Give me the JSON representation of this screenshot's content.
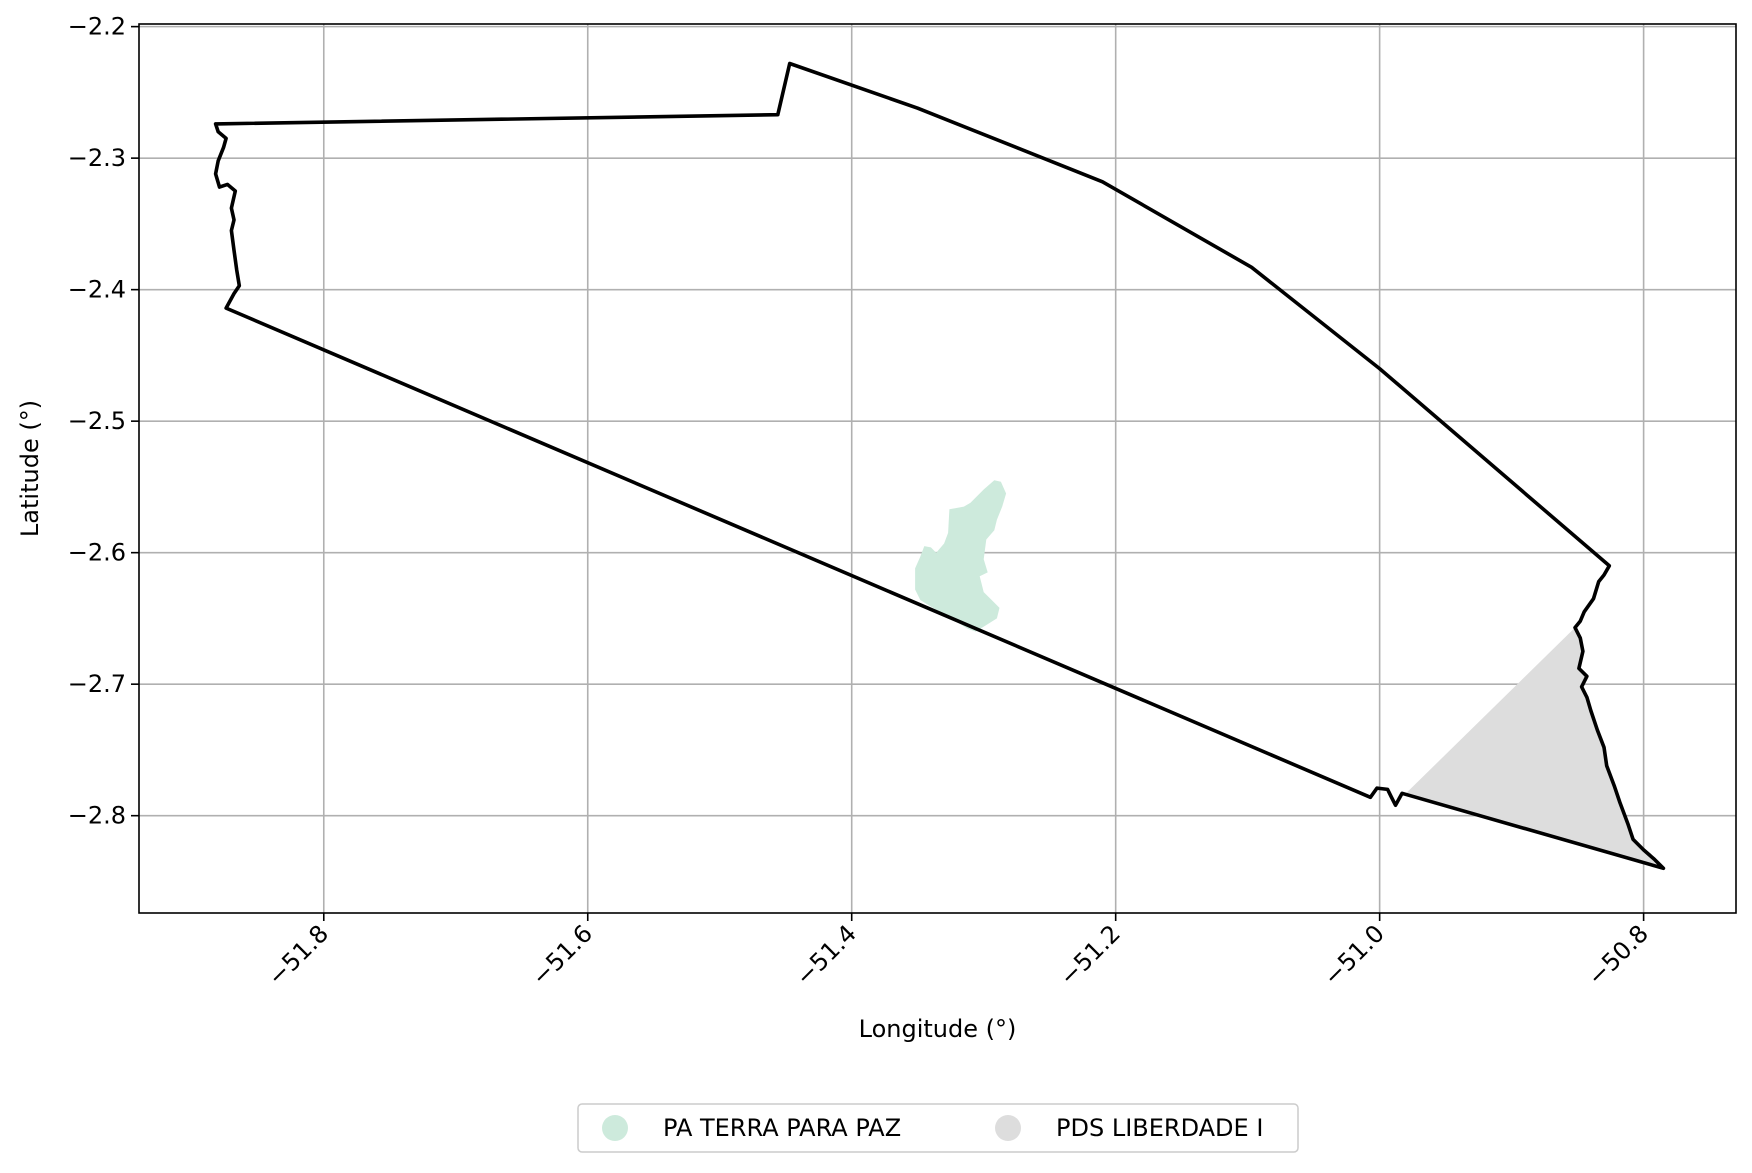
{
  "chart_data": {
    "type": "map",
    "xlabel": "Longitude (°)",
    "ylabel": "Latitude (°)",
    "xlim": [
      -51.94,
      -50.73
    ],
    "ylim": [
      -2.874,
      -2.198
    ],
    "x_ticks": [
      -51.8,
      -51.6,
      -51.4,
      -51.2,
      -51.0,
      -50.8
    ],
    "x_tick_labels": [
      "−51.8",
      "−51.6",
      "−51.4",
      "−51.2",
      "−51.0",
      "−50.8"
    ],
    "y_ticks": [
      -2.2,
      -2.3,
      -2.4,
      -2.5,
      -2.6,
      -2.7,
      -2.8
    ],
    "y_tick_labels": [
      "−2.2",
      "−2.3",
      "−2.4",
      "−2.5",
      "−2.6",
      "−2.7",
      "−2.8"
    ],
    "grid": true,
    "legend_position": "bottom-center",
    "legend": [
      {
        "label": "PA TERRA PARA PAZ",
        "color": "#cdeadc"
      },
      {
        "label": "PDS LIBERDADE I",
        "color": "#dddddd"
      }
    ],
    "boundary": [
      [
        -51.882,
        -2.274
      ],
      [
        -51.456,
        -2.267
      ],
      [
        -51.447,
        -2.228
      ],
      [
        -51.35,
        -2.262
      ],
      [
        -51.21,
        -2.318
      ],
      [
        -51.097,
        -2.383
      ],
      [
        -51.0,
        -2.46
      ],
      [
        -50.826,
        -2.61
      ],
      [
        -50.83,
        -2.617
      ],
      [
        -50.834,
        -2.622
      ],
      [
        -50.838,
        -2.635
      ],
      [
        -50.845,
        -2.645
      ],
      [
        -50.848,
        -2.652
      ],
      [
        -50.852,
        -2.657
      ],
      [
        -50.848,
        -2.665
      ],
      [
        -50.846,
        -2.675
      ],
      [
        -50.849,
        -2.688
      ],
      [
        -50.843,
        -2.694
      ],
      [
        -50.847,
        -2.702
      ],
      [
        -50.843,
        -2.71
      ],
      [
        -50.84,
        -2.72
      ],
      [
        -50.835,
        -2.735
      ],
      [
        -50.83,
        -2.748
      ],
      [
        -50.828,
        -2.762
      ],
      [
        -50.822,
        -2.778
      ],
      [
        -50.818,
        -2.79
      ],
      [
        -50.812,
        -2.806
      ],
      [
        -50.808,
        -2.818
      ],
      [
        -50.8,
        -2.826
      ],
      [
        -50.792,
        -2.833
      ],
      [
        -50.785,
        -2.84
      ],
      [
        -50.983,
        -2.783
      ],
      [
        -50.988,
        -2.792
      ],
      [
        -50.991,
        -2.786
      ],
      [
        -50.994,
        -2.78
      ],
      [
        -51.002,
        -2.779
      ],
      [
        -51.007,
        -2.786
      ],
      [
        -51.874,
        -2.414
      ],
      [
        -51.868,
        -2.403
      ],
      [
        -51.864,
        -2.397
      ],
      [
        -51.866,
        -2.385
      ],
      [
        -51.868,
        -2.37
      ],
      [
        -51.87,
        -2.355
      ],
      [
        -51.868,
        -2.347
      ],
      [
        -51.87,
        -2.338
      ],
      [
        -51.867,
        -2.325
      ],
      [
        -51.873,
        -2.32
      ],
      [
        -51.879,
        -2.322
      ],
      [
        -51.882,
        -2.312
      ],
      [
        -51.88,
        -2.302
      ],
      [
        -51.876,
        -2.292
      ],
      [
        -51.874,
        -2.285
      ],
      [
        -51.88,
        -2.28
      ],
      [
        -51.882,
        -2.274
      ]
    ],
    "polygons": [
      {
        "name": "PA TERRA PARA PAZ",
        "coords": [
          [
            -51.306,
            -2.66
          ],
          [
            -51.29,
            -2.65
          ],
          [
            -51.288,
            -2.642
          ],
          [
            -51.293,
            -2.637
          ],
          [
            -51.3,
            -2.63
          ],
          [
            -51.303,
            -2.618
          ],
          [
            -51.297,
            -2.615
          ],
          [
            -51.3,
            -2.605
          ],
          [
            -51.298,
            -2.59
          ],
          [
            -51.292,
            -2.583
          ],
          [
            -51.29,
            -2.575
          ],
          [
            -51.286,
            -2.565
          ],
          [
            -51.283,
            -2.555
          ],
          [
            -51.287,
            -2.546
          ],
          [
            -51.292,
            -2.545
          ],
          [
            -51.3,
            -2.552
          ],
          [
            -51.31,
            -2.562
          ],
          [
            -51.315,
            -2.565
          ],
          [
            -51.326,
            -2.567
          ],
          [
            -51.327,
            -2.585
          ],
          [
            -51.33,
            -2.593
          ],
          [
            -51.336,
            -2.6
          ],
          [
            -51.34,
            -2.596
          ],
          [
            -51.345,
            -2.595
          ],
          [
            -51.348,
            -2.603
          ],
          [
            -51.352,
            -2.612
          ],
          [
            -51.352,
            -2.628
          ],
          [
            -51.348,
            -2.636
          ],
          [
            -51.34,
            -2.641
          ],
          [
            -51.325,
            -2.65
          ],
          [
            -51.312,
            -2.658
          ],
          [
            -51.306,
            -2.66
          ]
        ]
      },
      {
        "name": "PDS LIBERDADE I",
        "coords": [
          [
            -50.98,
            -2.783
          ],
          [
            -50.852,
            -2.657
          ],
          [
            -50.848,
            -2.665
          ],
          [
            -50.846,
            -2.675
          ],
          [
            -50.849,
            -2.688
          ],
          [
            -50.843,
            -2.694
          ],
          [
            -50.847,
            -2.702
          ],
          [
            -50.843,
            -2.71
          ],
          [
            -50.84,
            -2.72
          ],
          [
            -50.835,
            -2.735
          ],
          [
            -50.83,
            -2.748
          ],
          [
            -50.828,
            -2.762
          ],
          [
            -50.822,
            -2.778
          ],
          [
            -50.818,
            -2.79
          ],
          [
            -50.812,
            -2.806
          ],
          [
            -50.808,
            -2.818
          ],
          [
            -50.8,
            -2.826
          ],
          [
            -50.792,
            -2.833
          ],
          [
            -50.785,
            -2.84
          ],
          [
            -50.98,
            -2.783
          ]
        ]
      }
    ]
  }
}
